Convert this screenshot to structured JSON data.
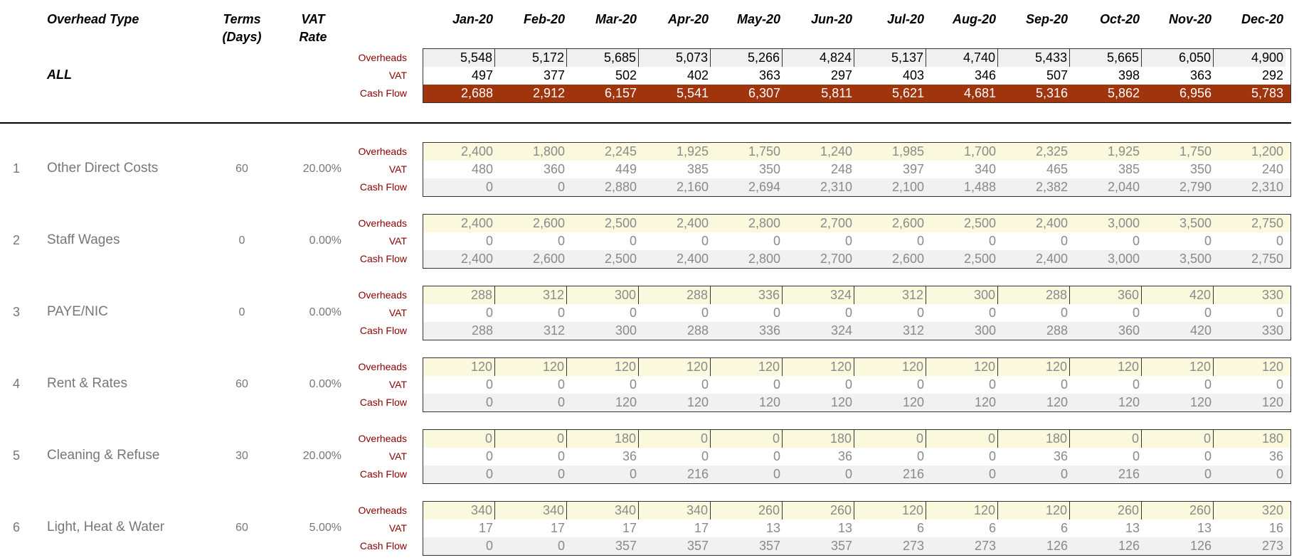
{
  "header": {
    "overhead_type": "Overhead Type",
    "terms_line1": "Terms",
    "terms_line2": "(Days)",
    "vat_line1": "VAT",
    "vat_line2": "Rate",
    "all_label": "ALL"
  },
  "row_labels": {
    "overheads": "Overheads",
    "vat": "VAT",
    "cash_flow": "Cash Flow"
  },
  "months": [
    "Jan-20",
    "Feb-20",
    "Mar-20",
    "Apr-20",
    "May-20",
    "Jun-20",
    "Jul-20",
    "Aug-20",
    "Sep-20",
    "Oct-20",
    "Nov-20",
    "Dec-20"
  ],
  "summary": {
    "overheads": [
      "5,548",
      "5,172",
      "5,685",
      "5,073",
      "5,266",
      "4,824",
      "5,137",
      "4,740",
      "5,433",
      "5,665",
      "6,050",
      "4,900"
    ],
    "vat": [
      "497",
      "377",
      "502",
      "402",
      "363",
      "297",
      "403",
      "346",
      "507",
      "398",
      "363",
      "292"
    ],
    "cash_flow": [
      "2,688",
      "2,912",
      "6,157",
      "5,541",
      "6,307",
      "5,811",
      "5,621",
      "4,681",
      "5,316",
      "5,862",
      "6,956",
      "5,783"
    ]
  },
  "colors": {
    "cash_flow_bg": "#a0340d",
    "overheads_bg": "#fbf9dd",
    "label_red": "#8b0000"
  },
  "sections": [
    {
      "num": "1",
      "name": "Other Direct Costs",
      "terms": "60",
      "vat_rate": "20.00%",
      "overheads": [
        "2,400",
        "1,800",
        "2,245",
        "1,925",
        "1,750",
        "1,240",
        "1,985",
        "1,700",
        "2,325",
        "1,925",
        "1,750",
        "1,200"
      ],
      "vat": [
        "480",
        "360",
        "449",
        "385",
        "350",
        "248",
        "397",
        "340",
        "465",
        "385",
        "350",
        "240"
      ],
      "cash_flow": [
        "0",
        "0",
        "2,880",
        "2,160",
        "2,694",
        "2,310",
        "2,100",
        "1,488",
        "2,382",
        "2,040",
        "2,790",
        "2,310"
      ]
    },
    {
      "num": "2",
      "name": "Staff Wages",
      "terms": "0",
      "vat_rate": "0.00%",
      "overheads": [
        "2,400",
        "2,600",
        "2,500",
        "2,400",
        "2,800",
        "2,700",
        "2,600",
        "2,500",
        "2,400",
        "3,000",
        "3,500",
        "2,750"
      ],
      "vat": [
        "0",
        "0",
        "0",
        "0",
        "0",
        "0",
        "0",
        "0",
        "0",
        "0",
        "0",
        "0"
      ],
      "cash_flow": [
        "2,400",
        "2,600",
        "2,500",
        "2,400",
        "2,800",
        "2,700",
        "2,600",
        "2,500",
        "2,400",
        "3,000",
        "3,500",
        "2,750"
      ]
    },
    {
      "num": "3",
      "name": "PAYE/NIC",
      "terms": "0",
      "vat_rate": "0.00%",
      "overheads": [
        "288",
        "312",
        "300",
        "288",
        "336",
        "324",
        "312",
        "300",
        "288",
        "360",
        "420",
        "330"
      ],
      "vat": [
        "0",
        "0",
        "0",
        "0",
        "0",
        "0",
        "0",
        "0",
        "0",
        "0",
        "0",
        "0"
      ],
      "cash_flow": [
        "288",
        "312",
        "300",
        "288",
        "336",
        "324",
        "312",
        "300",
        "288",
        "360",
        "420",
        "330"
      ]
    },
    {
      "num": "4",
      "name": "Rent & Rates",
      "terms": "60",
      "vat_rate": "0.00%",
      "overheads": [
        "120",
        "120",
        "120",
        "120",
        "120",
        "120",
        "120",
        "120",
        "120",
        "120",
        "120",
        "120"
      ],
      "vat": [
        "0",
        "0",
        "0",
        "0",
        "0",
        "0",
        "0",
        "0",
        "0",
        "0",
        "0",
        "0"
      ],
      "cash_flow": [
        "0",
        "0",
        "120",
        "120",
        "120",
        "120",
        "120",
        "120",
        "120",
        "120",
        "120",
        "120"
      ]
    },
    {
      "num": "5",
      "name": "Cleaning & Refuse",
      "terms": "30",
      "vat_rate": "20.00%",
      "overheads": [
        "0",
        "0",
        "180",
        "0",
        "0",
        "180",
        "0",
        "0",
        "180",
        "0",
        "0",
        "180"
      ],
      "vat": [
        "0",
        "0",
        "36",
        "0",
        "0",
        "36",
        "0",
        "0",
        "36",
        "0",
        "0",
        "36"
      ],
      "cash_flow": [
        "0",
        "0",
        "0",
        "216",
        "0",
        "0",
        "216",
        "0",
        "0",
        "216",
        "0",
        "0"
      ]
    },
    {
      "num": "6",
      "name": "Light, Heat & Water",
      "terms": "60",
      "vat_rate": "5.00%",
      "overheads": [
        "340",
        "340",
        "340",
        "340",
        "260",
        "260",
        "120",
        "120",
        "120",
        "260",
        "260",
        "320"
      ],
      "vat": [
        "17",
        "17",
        "17",
        "17",
        "13",
        "13",
        "6",
        "6",
        "6",
        "13",
        "13",
        "16"
      ],
      "cash_flow": [
        "0",
        "0",
        "357",
        "357",
        "357",
        "357",
        "273",
        "273",
        "126",
        "126",
        "126",
        "273"
      ]
    }
  ]
}
